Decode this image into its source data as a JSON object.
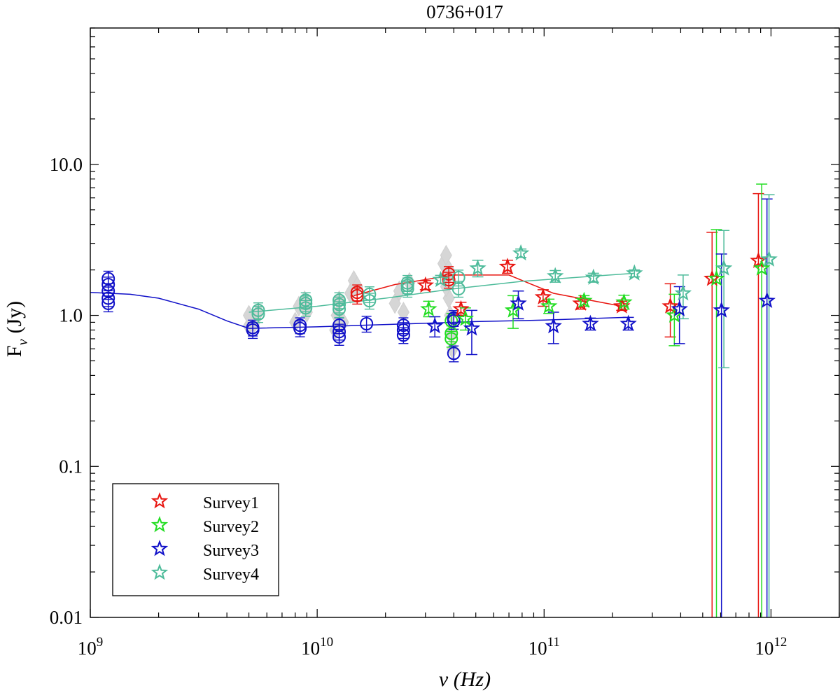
{
  "chart_data": {
    "type": "scatter",
    "title": "0736+017",
    "xlabel": "ν (Hz)",
    "ylabel_main": "F",
    "ylabel_sub": "ν",
    "ylabel_unit": "(Jy)",
    "x_scale": "log",
    "y_scale": "log",
    "xlim": [
      1000000000,
      2000000000000
    ],
    "ylim": [
      0.01,
      80
    ],
    "grid": false,
    "legend_position": "bottom-left",
    "x_ticks": [
      {
        "value": 1000000000,
        "base": "10",
        "exp": "9"
      },
      {
        "value": 10000000000,
        "base": "10",
        "exp": "10"
      },
      {
        "value": 100000000000,
        "base": "10",
        "exp": "11"
      },
      {
        "value": 1000000000000,
        "base": "10",
        "exp": "12"
      }
    ],
    "y_ticks": [
      {
        "value": 0.01,
        "label": "0.01"
      },
      {
        "value": 0.1,
        "label": "0.1"
      },
      {
        "value": 1,
        "label": "1.0"
      },
      {
        "value": 10,
        "label": "10.0"
      }
    ],
    "colors": {
      "survey1": "#e8140f",
      "survey2": "#22dd22",
      "survey3": "#1010c8",
      "survey4": "#4dbb9a",
      "history": "#d6d6d6"
    },
    "series": [
      {
        "name": "Survey1",
        "color": "#e8140f",
        "circles": [
          [
            15000000000.0,
            1.35
          ],
          [
            15000000000.0,
            1.42
          ],
          [
            38000000000.0,
            1.72
          ],
          [
            38000000000.0,
            1.88
          ]
        ],
        "stars": [
          {
            "x": 30000000000.0,
            "y": 1.58,
            "lo": 1.48,
            "hi": 1.7
          },
          {
            "x": 43000000000.0,
            "y": 1.1,
            "lo": 1.0,
            "hi": 1.22
          },
          {
            "x": 69000000000.0,
            "y": 2.1,
            "lo": 1.9,
            "hi": 2.32
          },
          {
            "x": 99000000000.0,
            "y": 1.32,
            "lo": 1.15,
            "hi": 1.48
          },
          {
            "x": 145000000000.0,
            "y": 1.2,
            "lo": 1.1,
            "hi": 1.3
          },
          {
            "x": 220000000000.0,
            "y": 1.15,
            "lo": 1.08,
            "hi": 1.24
          },
          {
            "x": 360000000000.0,
            "y": 1.15,
            "lo": 0.72,
            "hi": 1.62
          },
          {
            "x": 550000000000.0,
            "y": 1.75,
            "lo": 0.01,
            "hi": 3.55
          },
          {
            "x": 880000000000.0,
            "y": 2.3,
            "lo": 0.01,
            "hi": 6.4
          }
        ],
        "fit": [
          [
            14500000000.0,
            1.35
          ],
          [
            22000000000.0,
            1.6
          ],
          [
            40000000000.0,
            1.85
          ],
          [
            70000000000.0,
            1.85
          ],
          [
            110000000000.0,
            1.4
          ],
          [
            220000000000.0,
            1.15
          ]
        ]
      },
      {
        "name": "Survey2",
        "color": "#22dd22",
        "circles": [
          [
            39000000000.0,
            0.7
          ],
          [
            39000000000.0,
            0.76
          ],
          [
            39000000000.0,
            0.92
          ]
        ],
        "stars": [
          {
            "x": 31000000000.0,
            "y": 1.1,
            "lo": 0.98,
            "hi": 1.24
          },
          {
            "x": 45000000000.0,
            "y": 0.95,
            "lo": 0.8,
            "hi": 1.12
          },
          {
            "x": 73000000000.0,
            "y": 1.08,
            "lo": 0.82,
            "hi": 1.35
          },
          {
            "x": 105000000000.0,
            "y": 1.15,
            "lo": 1.03,
            "hi": 1.28
          },
          {
            "x": 150000000000.0,
            "y": 1.25,
            "lo": 1.15,
            "hi": 1.35
          },
          {
            "x": 225000000000.0,
            "y": 1.22,
            "lo": 1.1,
            "hi": 1.36
          },
          {
            "x": 375000000000.0,
            "y": 1.0,
            "lo": 0.63,
            "hi": 1.38
          },
          {
            "x": 575000000000.0,
            "y": 1.75,
            "lo": 0.01,
            "hi": 3.7
          },
          {
            "x": 910000000000.0,
            "y": 2.05,
            "lo": 0.01,
            "hi": 7.4
          }
        ],
        "fit": []
      },
      {
        "name": "Survey3",
        "color": "#1010c8",
        "circles": [
          [
            1200000000.0,
            1.2
          ],
          [
            1200000000.0,
            1.3
          ],
          [
            1200000000.0,
            1.45
          ],
          [
            1200000000.0,
            1.6
          ],
          [
            1200000000.0,
            1.75
          ],
          [
            5200000000.0,
            0.8
          ],
          [
            5200000000.0,
            0.83
          ],
          [
            8400000000.0,
            0.82
          ],
          [
            8400000000.0,
            0.86
          ],
          [
            12500000000.0,
            0.72
          ],
          [
            12500000000.0,
            0.78
          ],
          [
            12500000000.0,
            0.86
          ],
          [
            16500000000.0,
            0.88
          ],
          [
            24000000000.0,
            0.74
          ],
          [
            24000000000.0,
            0.8
          ],
          [
            24000000000.0,
            0.86
          ],
          [
            40000000000.0,
            0.56
          ],
          [
            40000000000.0,
            0.92
          ],
          [
            40000000000.0,
            0.96
          ]
        ],
        "stars": [
          {
            "x": 33000000000.0,
            "y": 0.85,
            "lo": 0.72,
            "hi": 0.98
          },
          {
            "x": 48000000000.0,
            "y": 0.82,
            "lo": 0.55,
            "hi": 1.08
          },
          {
            "x": 77000000000.0,
            "y": 1.2,
            "lo": 0.95,
            "hi": 1.45
          },
          {
            "x": 110000000000.0,
            "y": 0.85,
            "lo": 0.65,
            "hi": 1.05
          },
          {
            "x": 160000000000.0,
            "y": 0.88,
            "lo": 0.8,
            "hi": 0.96
          },
          {
            "x": 235000000000.0,
            "y": 0.88,
            "lo": 0.8,
            "hi": 0.97
          },
          {
            "x": 395000000000.0,
            "y": 1.1,
            "lo": 0.65,
            "hi": 1.55
          },
          {
            "x": 605000000000.0,
            "y": 1.08,
            "lo": 0.01,
            "hi": 2.55
          },
          {
            "x": 960000000000.0,
            "y": 1.25,
            "lo": 0.01,
            "hi": 5.9
          }
        ],
        "fit": [
          [
            1000000000.0,
            1.42
          ],
          [
            1500000000.0,
            1.38
          ],
          [
            2000000000.0,
            1.3
          ],
          [
            3000000000.0,
            1.1
          ],
          [
            4000000000.0,
            0.92
          ],
          [
            5000000000.0,
            0.82
          ],
          [
            10000000000.0,
            0.84
          ],
          [
            20000000000.0,
            0.87
          ],
          [
            50000000000.0,
            0.91
          ],
          [
            100000000000.0,
            0.93
          ],
          [
            230000000000.0,
            0.97
          ]
        ]
      },
      {
        "name": "Survey4",
        "color": "#4dbb9a",
        "circles": [
          [
            5500000000.0,
            1.02
          ],
          [
            5500000000.0,
            1.08
          ],
          [
            8900000000.0,
            1.12
          ],
          [
            8900000000.0,
            1.2
          ],
          [
            8900000000.0,
            1.26
          ],
          [
            12500000000.0,
            1.1
          ],
          [
            12500000000.0,
            1.18
          ],
          [
            12500000000.0,
            1.26
          ],
          [
            17000000000.0,
            1.25
          ],
          [
            17000000000.0,
            1.38
          ],
          [
            25000000000.0,
            1.5
          ],
          [
            25000000000.0,
            1.58
          ],
          [
            25000000000.0,
            1.64
          ],
          [
            42000000000.0,
            1.5
          ],
          [
            42000000000.0,
            1.78
          ]
        ],
        "stars": [
          {
            "x": 35000000000.0,
            "y": 1.72,
            "lo": 1.62,
            "hi": 1.84
          },
          {
            "x": 51000000000.0,
            "y": 2.05,
            "lo": 1.8,
            "hi": 2.32
          },
          {
            "x": 79000000000.0,
            "y": 2.58,
            "lo": 2.42,
            "hi": 2.75
          },
          {
            "x": 112000000000.0,
            "y": 1.82,
            "lo": 1.66,
            "hi": 1.98
          },
          {
            "x": 165000000000.0,
            "y": 1.78,
            "lo": 1.66,
            "hi": 1.9
          },
          {
            "x": 250000000000.0,
            "y": 1.9,
            "lo": 1.8,
            "hi": 2.0
          },
          {
            "x": 410000000000.0,
            "y": 1.4,
            "lo": 0.95,
            "hi": 1.85
          },
          {
            "x": 620000000000.0,
            "y": 2.05,
            "lo": 0.45,
            "hi": 3.65
          },
          {
            "x": 980000000000.0,
            "y": 2.35,
            "lo": 0.01,
            "hi": 6.3
          }
        ],
        "fit": [
          [
            5000000000.0,
            1.05
          ],
          [
            10000000000.0,
            1.15
          ],
          [
            20000000000.0,
            1.3
          ],
          [
            40000000000.0,
            1.5
          ],
          [
            80000000000.0,
            1.68
          ],
          [
            150000000000.0,
            1.8
          ],
          [
            250000000000.0,
            1.9
          ]
        ]
      }
    ],
    "history_points": [
      [
        5000000000.0,
        0.85
      ],
      [
        5000000000.0,
        1.0
      ],
      [
        5300000000.0,
        0.9
      ],
      [
        5500000000.0,
        1.05
      ],
      [
        8000000000.0,
        0.9
      ],
      [
        8300000000.0,
        1.15
      ],
      [
        8800000000.0,
        1.25
      ],
      [
        9000000000.0,
        1.05
      ],
      [
        12000000000.0,
        0.8
      ],
      [
        12200000000.0,
        1.0
      ],
      [
        12500000000.0,
        1.25
      ],
      [
        13000000000.0,
        0.9
      ],
      [
        14000000000.0,
        1.4
      ],
      [
        14500000000.0,
        1.7
      ],
      [
        15000000000.0,
        1.55
      ],
      [
        22000000000.0,
        1.2
      ],
      [
        23000000000.0,
        1.45
      ],
      [
        24000000000.0,
        1.05
      ],
      [
        25500000000.0,
        1.65
      ],
      [
        36000000000.0,
        2.2
      ],
      [
        37000000000.0,
        2.5
      ],
      [
        37500000000.0,
        1.8
      ],
      [
        38000000000.0,
        1.3
      ],
      [
        38500000000.0,
        1.0
      ],
      [
        39000000000.0,
        0.75
      ],
      [
        39500000000.0,
        0.6
      ],
      [
        37000000000.0,
        1.55
      ],
      [
        38000000000.0,
        2.0
      ]
    ]
  }
}
